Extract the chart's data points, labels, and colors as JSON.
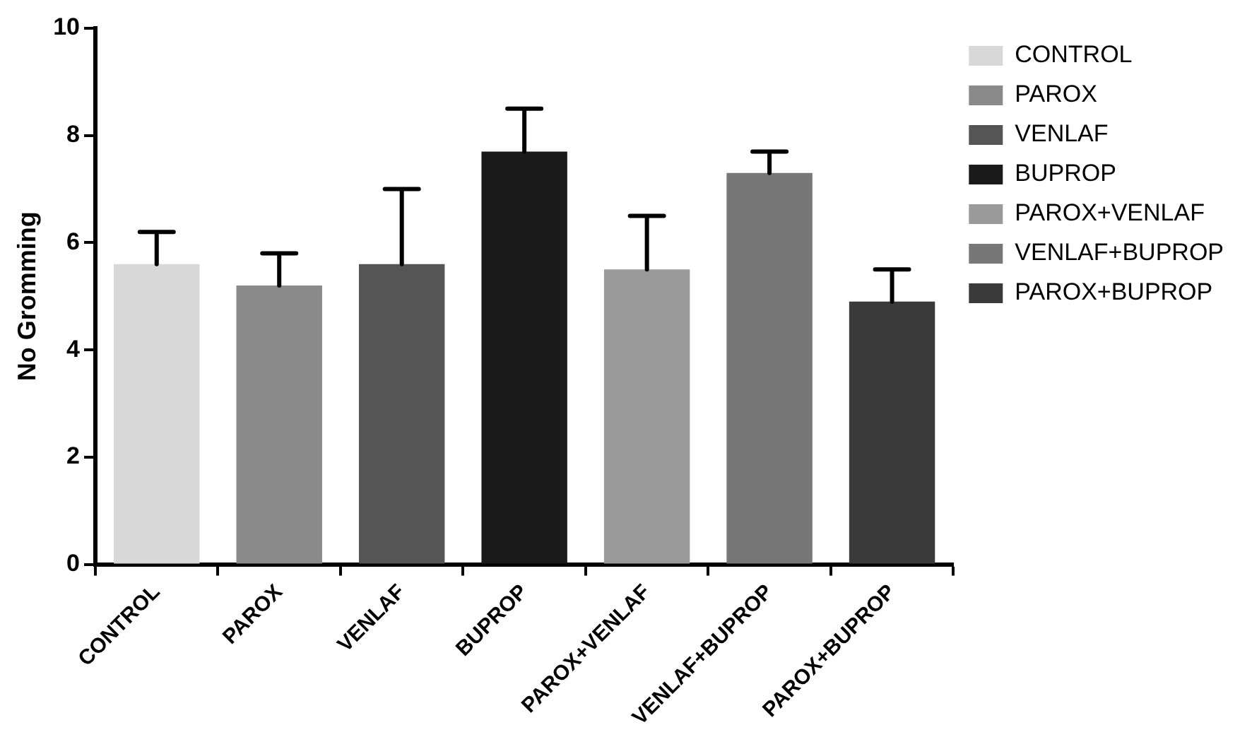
{
  "chart_data": {
    "type": "bar",
    "ylabel": "No Gromming",
    "categories": [
      "CONTROL",
      "PAROX",
      "VENLAF",
      "BUPROP",
      "PAROX+VENLAF",
      "VENLAF+BUPROP",
      "PAROX+BUPROP"
    ],
    "series": [
      {
        "name": "CONTROL",
        "color": "#d8d8d8",
        "values": [
          5.6,
          null,
          null,
          null,
          null,
          null,
          null
        ],
        "errors": [
          0.6,
          null,
          null,
          null,
          null,
          null,
          null
        ]
      },
      {
        "name": "PAROX",
        "color": "#8a8a8a",
        "values": [
          null,
          5.2,
          null,
          null,
          null,
          null,
          null
        ],
        "errors": [
          null,
          0.6,
          null,
          null,
          null,
          null,
          null
        ]
      },
      {
        "name": "VENLAF",
        "color": "#555555",
        "values": [
          null,
          null,
          5.6,
          null,
          null,
          null,
          null
        ],
        "errors": [
          null,
          null,
          1.4,
          null,
          null,
          null,
          null
        ]
      },
      {
        "name": "BUPROP",
        "color": "#1a1a1a",
        "values": [
          null,
          null,
          null,
          7.7,
          null,
          null,
          null
        ],
        "errors": [
          null,
          null,
          null,
          0.8,
          null,
          null,
          null
        ]
      },
      {
        "name": "PAROX+VENLAF",
        "color": "#9a9a9a",
        "values": [
          null,
          null,
          null,
          null,
          5.5,
          null,
          null
        ],
        "errors": [
          null,
          null,
          null,
          null,
          1.0,
          null,
          null
        ]
      },
      {
        "name": "VENLAF+BUPROP",
        "color": "#777777",
        "values": [
          null,
          null,
          null,
          null,
          null,
          7.3,
          null
        ],
        "errors": [
          null,
          null,
          null,
          null,
          null,
          0.4,
          null
        ]
      },
      {
        "name": "PAROX+BUPROP",
        "color": "#3a3a3a",
        "values": [
          null,
          null,
          null,
          null,
          null,
          null,
          4.9
        ],
        "errors": [
          null,
          null,
          null,
          null,
          null,
          null,
          0.6
        ]
      }
    ],
    "ylim": [
      0,
      10
    ],
    "yticks": [
      0,
      2,
      4,
      6,
      8,
      10
    ],
    "grid": false,
    "legend": "right"
  }
}
